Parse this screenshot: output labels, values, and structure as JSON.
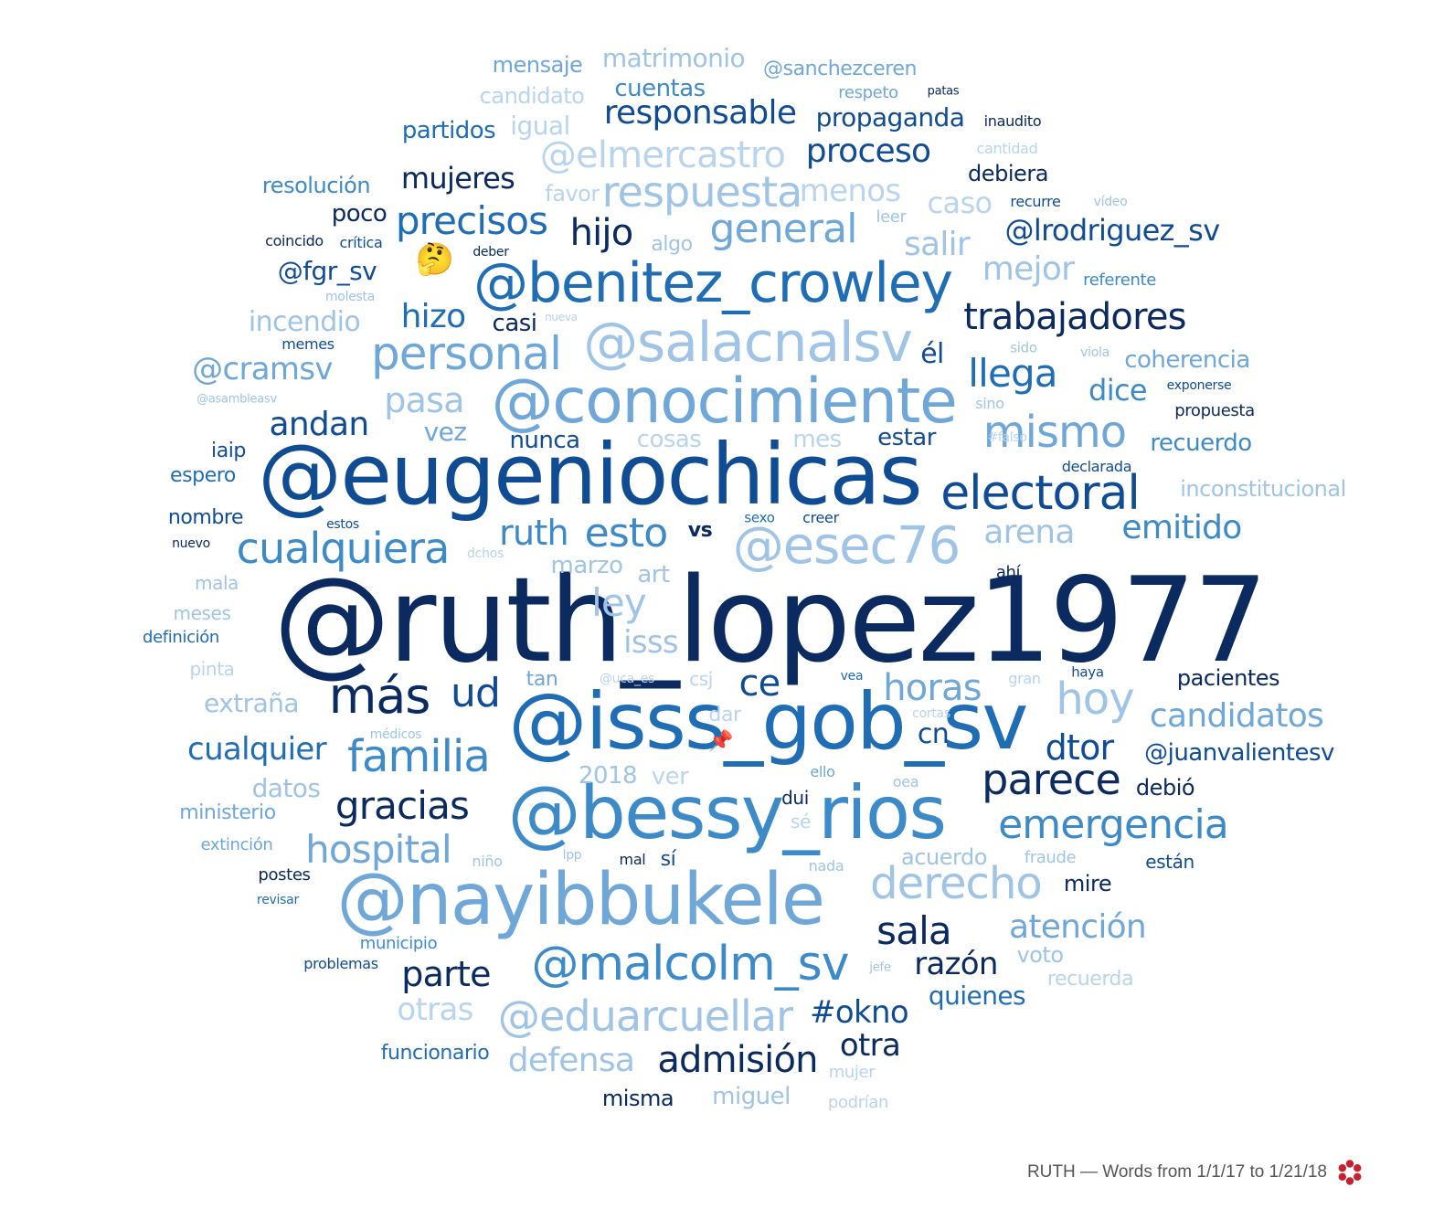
{
  "footer": {
    "caption": "RUTH — Words from 1/1/17 to 1/21/18"
  },
  "colors": {
    "darkest": "#0a2a60",
    "dark": "#0f4c93",
    "mid": "#1f6db5",
    "medium": "#3d8ac8",
    "light": "#6ea7d8",
    "lighter": "#9fc4e6",
    "palest": "#b9d4ee",
    "logo_red": "#c8202f"
  },
  "emoji": {
    "thinking": "🤔",
    "pushpin": "📌"
  },
  "words": [
    "@ruth_lopez1977",
    "@eugeniochicas",
    "@isss_gob_sv",
    "@bessy_rios",
    "@nayibbukele",
    "@conocimiente",
    "@benitez_crowley",
    "@salacnalsv",
    "@esec76",
    "@malcolm_sv",
    "@eduarcuellar",
    "electoral",
    "personal",
    "cualquiera",
    "mismo",
    "más",
    "trabajadores",
    "derecho",
    "familia",
    "parece",
    "emergencia",
    "respuesta",
    "precisos",
    "general",
    "hospital",
    "@elmercastro",
    "responsable",
    "gracias",
    "admisión",
    "hoy",
    "proceso",
    "candidatos",
    "llega",
    "emitido",
    "horas",
    "hijo",
    "ud",
    "andan",
    "ruth",
    "esto",
    "arena",
    "pasa",
    "atención",
    "sala",
    "parte",
    "@lrodriguez_sv",
    "mujeres",
    "ce",
    "ley",
    "dtor",
    "razón",
    "cualquier",
    "defensa",
    "otras",
    "#okno",
    "otra",
    "@cramsv",
    "propaganda",
    "mejor",
    "salir",
    "@juanvalientesv",
    "menos",
    "hizo",
    "caso",
    "incendio",
    "dice",
    "coherencia",
    "partidos",
    "cuentas",
    "matrimonio",
    "mensaje",
    "@sanchezceren",
    "candidato",
    "igual",
    "quienes",
    "inconstitucional",
    "él",
    "isss",
    "@fgr_sv",
    "recuerdo",
    "vez",
    "nunca",
    "cosas",
    "mes",
    "estar",
    "datos",
    "cn",
    "extraña",
    "pacientes",
    "debió",
    "mire",
    "acuerdo",
    "ver",
    "2018",
    "marzo",
    "art",
    "vs",
    "poco",
    "casi",
    "resolución",
    "favor",
    "debiera",
    "miguel",
    "misma",
    "funcionario",
    "recuerda",
    "voto",
    "nombre",
    "espero",
    "iaip",
    "están",
    "sí",
    "ministerio",
    "tan",
    "dui",
    "algo",
    "referente",
    "propuesta",
    "declarada",
    "leer",
    "recurre",
    "respeto",
    "inaudito",
    "patas",
    "cantidad",
    "vídeo",
    "coincido",
    "crítica",
    "deber",
    "molesta",
    "nueva",
    "memes",
    "@asambleasv",
    "sido",
    "viola",
    "exponerse",
    "sino",
    "#falso",
    "estos",
    "sexo",
    "creer",
    "nuevo",
    "dchos",
    "mala",
    "meses",
    "definición",
    "pinta",
    "@uca_es",
    "csj",
    "vea",
    "gran",
    "haya",
    "dar",
    "cortas",
    "médicos",
    "ello",
    "oea",
    "sé",
    "extinción",
    "lpp",
    "mal",
    "nada",
    "fraude",
    "niño",
    "postes",
    "revisar",
    "municipio",
    "problemas",
    "jefe",
    "mujer",
    "podrían",
    "ahí"
  ]
}
